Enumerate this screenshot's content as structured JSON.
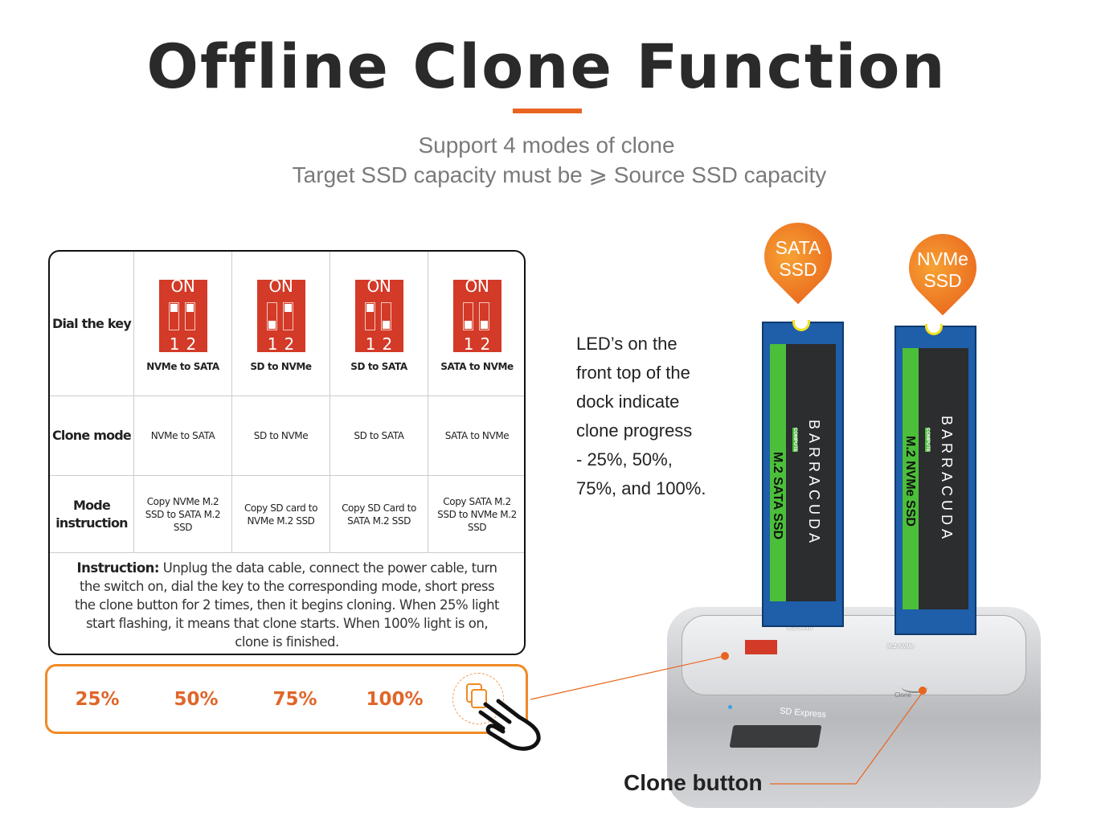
{
  "title": "Offline Clone Function",
  "subtitle": [
    "Support 4 modes of clone",
    "Target SSD capacity must be ⩾ Source SSD capacity"
  ],
  "accent": "#e8651f",
  "table": {
    "row_labels": {
      "dial": "Dial the key",
      "clone": "Clone mode",
      "mode1": "Mode",
      "mode2": "instruction"
    },
    "columns": [
      {
        "dip_on": "ON",
        "dip_nums": "12",
        "switches": [
          "up",
          "up"
        ],
        "dip_caption": "NVMe to SATA",
        "clone_mode": "NVMe to SATA",
        "instruction": "Copy NVMe M.2 SSD to SATA M.2 SSD"
      },
      {
        "dip_on": "ON",
        "dip_nums": "12",
        "switches": [
          "down",
          "up"
        ],
        "dip_caption": "SD to NVMe",
        "clone_mode": "SD to NVMe",
        "instruction": "Copy SD card to NVMe M.2 SSD"
      },
      {
        "dip_on": "ON",
        "dip_nums": "12",
        "switches": [
          "up",
          "down"
        ],
        "dip_caption": "SD to SATA",
        "clone_mode": "SD to SATA",
        "instruction": "Copy SD Card to SATA M.2 SSD"
      },
      {
        "dip_on": "ON",
        "dip_nums": "12",
        "switches": [
          "down",
          "down"
        ],
        "dip_caption": "SATA to NVMe",
        "clone_mode": "SATA to NVMe",
        "instruction": "Copy SATA M.2 SSD to NVMe M.2 SSD"
      }
    ],
    "instruction_label": "Instruction:",
    "instruction_text": " Unplug the data cable, connect the power cable, turn the switch on, dial the key to the corresponding mode, short press the clone button for 2 times, then it begins cloning. When 25% light start flashing, it means that clone starts. When 100% light is on, clone is finished."
  },
  "leds": [
    "25%",
    "50%",
    "75%",
    "100%"
  ],
  "led_text": [
    "LED’s on the",
    "front top of the",
    "dock indicate",
    "clone progress",
    "- 25%, 50%,",
    "75%, and 100%."
  ],
  "pins": [
    {
      "l1": "SATA",
      "l2": "SSD"
    },
    {
      "l1": "NVMe",
      "l2": "SSD"
    }
  ],
  "ssds": [
    {
      "label": "M.2 SATA SSD",
      "brand": "BARRACUDA",
      "sub": "COMPUTE"
    },
    {
      "label": "M.2 NVMe SSD",
      "brand": "BARRACUDA",
      "sub": "COMPUTE"
    }
  ],
  "dock": {
    "sd_label": "SD Express",
    "slot1": "M.2-SATA",
    "slot2": "M.2-NVMe",
    "button": "Clone"
  },
  "clone_button_label": "Clone button"
}
